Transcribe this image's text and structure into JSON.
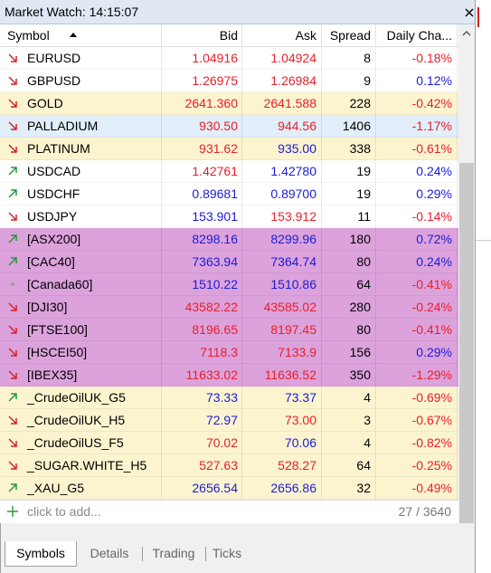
{
  "window": {
    "title": "Market Watch: 14:15:07"
  },
  "table": {
    "headers": [
      "Symbol",
      "Bid",
      "Ask",
      "Spread",
      "Daily Cha..."
    ],
    "rows": [
      {
        "symbol": "EURUSD",
        "bid": "1.04916",
        "ask": "1.04924",
        "spread": 8,
        "change": "-0.18%",
        "trend": "down",
        "bg": "#ffffff",
        "bid_color": "#e8202a",
        "ask_color": "#e8202a",
        "change_color": "#e8202a"
      },
      {
        "symbol": "GBPUSD",
        "bid": "1.26975",
        "ask": "1.26984",
        "spread": 9,
        "change": "0.12%",
        "trend": "down",
        "bg": "#ffffff",
        "bid_color": "#e8202a",
        "ask_color": "#e8202a",
        "change_color": "#1c1cd6"
      },
      {
        "symbol": "GOLD",
        "bid": "2641.360",
        "ask": "2641.588",
        "spread": 228,
        "change": "-0.42%",
        "trend": "down",
        "bg": "#fbf4cf",
        "bid_color": "#e8202a",
        "ask_color": "#e8202a",
        "change_color": "#e8202a"
      },
      {
        "symbol": "PALLADIUM",
        "bid": "930.50",
        "ask": "944.56",
        "spread": 1406,
        "change": "-1.17%",
        "trend": "down",
        "bg": "#e2eefa",
        "bid_color": "#e8202a",
        "ask_color": "#e8202a",
        "change_color": "#e8202a"
      },
      {
        "symbol": "PLATINUM",
        "bid": "931.62",
        "ask": "935.00",
        "spread": 338,
        "change": "-0.61%",
        "trend": "down",
        "bg": "#fbf4cf",
        "bid_color": "#e8202a",
        "ask_color": "#1c1cd6",
        "change_color": "#e8202a"
      },
      {
        "symbol": "USDCAD",
        "bid": "1.42761",
        "ask": "1.42780",
        "spread": 19,
        "change": "0.24%",
        "trend": "up",
        "bg": "#ffffff",
        "bid_color": "#e8202a",
        "ask_color": "#1c1cd6",
        "change_color": "#1c1cd6"
      },
      {
        "symbol": "USDCHF",
        "bid": "0.89681",
        "ask": "0.89700",
        "spread": 19,
        "change": "0.29%",
        "trend": "up",
        "bg": "#ffffff",
        "bid_color": "#1c1cd6",
        "ask_color": "#1c1cd6",
        "change_color": "#1c1cd6"
      },
      {
        "symbol": "USDJPY",
        "bid": "153.901",
        "ask": "153.912",
        "spread": 11,
        "change": "-0.14%",
        "trend": "down",
        "bg": "#ffffff",
        "bid_color": "#1c1cd6",
        "ask_color": "#e8202a",
        "change_color": "#e8202a"
      },
      {
        "symbol": "[ASX200]",
        "bid": "8298.16",
        "ask": "8299.96",
        "spread": 180,
        "change": "0.72%",
        "trend": "up",
        "bg": "#dca2dc",
        "bid_color": "#1c1cd6",
        "ask_color": "#1c1cd6",
        "change_color": "#1c1cd6"
      },
      {
        "symbol": "[CAC40]",
        "bid": "7363.94",
        "ask": "7364.74",
        "spread": 80,
        "change": "0.24%",
        "trend": "up",
        "bg": "#dca2dc",
        "bid_color": "#1c1cd6",
        "ask_color": "#1c1cd6",
        "change_color": "#1c1cd6"
      },
      {
        "symbol": "[Canada60]",
        "bid": "1510.22",
        "ask": "1510.86",
        "spread": 64,
        "change": "-0.41%",
        "trend": "none",
        "bg": "#dca2dc",
        "bid_color": "#1c1cd6",
        "ask_color": "#1c1cd6",
        "change_color": "#e8202a"
      },
      {
        "symbol": "[DJI30]",
        "bid": "43582.22",
        "ask": "43585.02",
        "spread": 280,
        "change": "-0.24%",
        "trend": "down",
        "bg": "#dca2dc",
        "bid_color": "#e8202a",
        "ask_color": "#e8202a",
        "change_color": "#e8202a"
      },
      {
        "symbol": "[FTSE100]",
        "bid": "8196.65",
        "ask": "8197.45",
        "spread": 80,
        "change": "-0.41%",
        "trend": "down",
        "bg": "#dca2dc",
        "bid_color": "#e8202a",
        "ask_color": "#e8202a",
        "change_color": "#e8202a"
      },
      {
        "symbol": "[HSCEI50]",
        "bid": "7118.3",
        "ask": "7133.9",
        "spread": 156,
        "change": "0.29%",
        "trend": "down",
        "bg": "#dca2dc",
        "bid_color": "#e8202a",
        "ask_color": "#e8202a",
        "change_color": "#1c1cd6"
      },
      {
        "symbol": "[IBEX35]",
        "bid": "11633.02",
        "ask": "11636.52",
        "spread": 350,
        "change": "-1.29%",
        "trend": "down",
        "bg": "#dca2dc",
        "bid_color": "#e8202a",
        "ask_color": "#e8202a",
        "change_color": "#e8202a"
      },
      {
        "symbol": "_CrudeOilUK_G5",
        "bid": "73.33",
        "ask": "73.37",
        "spread": 4,
        "change": "-0.69%",
        "trend": "up",
        "bg": "#fbf4cf",
        "bid_color": "#1c1cd6",
        "ask_color": "#1c1cd6",
        "change_color": "#e8202a"
      },
      {
        "symbol": "_CrudeOilUK_H5",
        "bid": "72.97",
        "ask": "73.00",
        "spread": 3,
        "change": "-0.67%",
        "trend": "down",
        "bg": "#fbf4cf",
        "bid_color": "#1c1cd6",
        "ask_color": "#e8202a",
        "change_color": "#e8202a"
      },
      {
        "symbol": "_CrudeOilUS_F5",
        "bid": "70.02",
        "ask": "70.06",
        "spread": 4,
        "change": "-0.82%",
        "trend": "down",
        "bg": "#fbf4cf",
        "bid_color": "#e8202a",
        "ask_color": "#1c1cd6",
        "change_color": "#e8202a"
      },
      {
        "symbol": "_SUGAR.WHITE_H5",
        "bid": "527.63",
        "ask": "528.27",
        "spread": 64,
        "change": "-0.25%",
        "trend": "down",
        "bg": "#fbf4cf",
        "bid_color": "#e8202a",
        "ask_color": "#e8202a",
        "change_color": "#e8202a"
      },
      {
        "symbol": "_XAU_G5",
        "bid": "2656.54",
        "ask": "2656.86",
        "spread": 32,
        "change": "-0.49%",
        "trend": "up",
        "bg": "#fbf4cf",
        "bid_color": "#1c1cd6",
        "ask_color": "#1c1cd6",
        "change_color": "#e8202a"
      }
    ],
    "add_prompt": "click to add...",
    "count": "27 / 3640"
  },
  "tabs": [
    "Symbols",
    "Details",
    "Trading",
    "Ticks"
  ]
}
